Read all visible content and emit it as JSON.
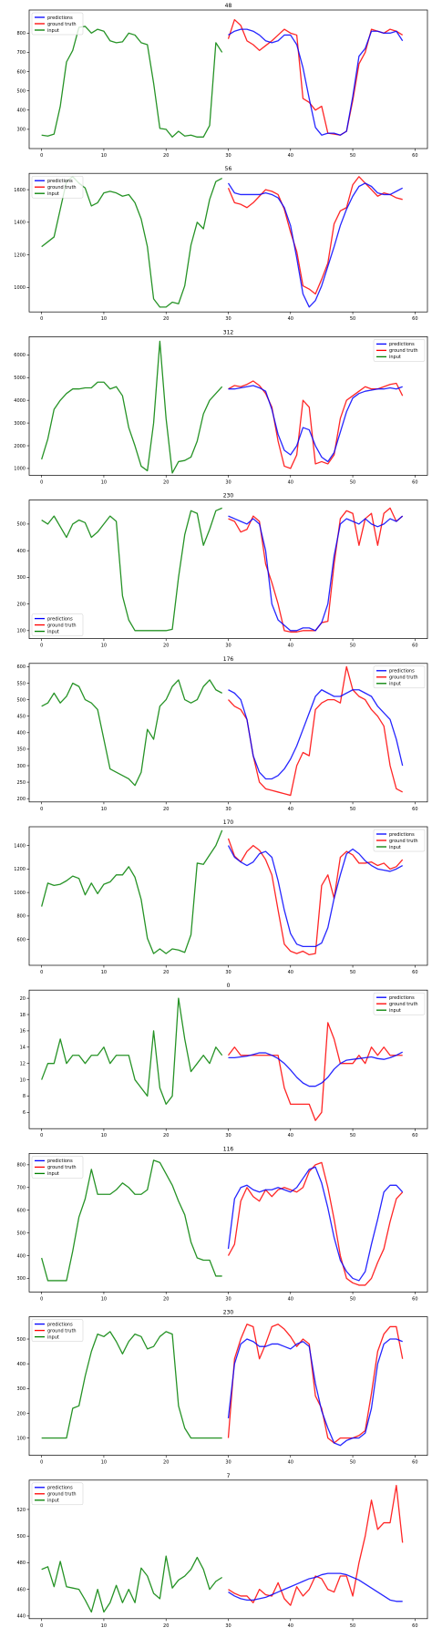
{
  "series_styles": [
    {
      "key": "predictions",
      "label": "predictions",
      "color": "#0000ff"
    },
    {
      "key": "ground_truth",
      "label": "ground truth",
      "color": "#ff0000"
    },
    {
      "key": "input",
      "label": "input",
      "color": "#008000"
    }
  ],
  "chart_data": [
    {
      "type": "line",
      "title": "48",
      "xlim": [
        -2,
        62
      ],
      "ylim": [
        200,
        920
      ],
      "xticks": [
        0,
        10,
        20,
        30,
        40,
        50,
        60
      ],
      "yticks": [
        300,
        400,
        500,
        600,
        700,
        800
      ],
      "legend": "top-left",
      "input": [
        270,
        265,
        275,
        420,
        650,
        710,
        830,
        835,
        800,
        820,
        810,
        760,
        750,
        755,
        800,
        790,
        750,
        740,
        540,
        305,
        300,
        260,
        290,
        265,
        270,
        260,
        260,
        320,
        750,
        700
      ],
      "ground_truth": [
        770,
        870,
        840,
        760,
        740,
        710,
        735,
        760,
        790,
        820,
        800,
        790,
        460,
        440,
        400,
        420,
        280,
        275,
        270,
        290,
        450,
        640,
        700,
        820,
        810,
        800,
        820,
        810,
        790
      ],
      "predictions": [
        790,
        810,
        820,
        820,
        810,
        790,
        760,
        750,
        760,
        790,
        790,
        740,
        620,
        460,
        310,
        270,
        280,
        280,
        270,
        290,
        470,
        680,
        720,
        810,
        810,
        800,
        800,
        810,
        760
      ]
    },
    {
      "type": "line",
      "title": "56",
      "xlim": [
        -2,
        62
      ],
      "ylim": [
        850,
        1700
      ],
      "xticks": [
        0,
        10,
        20,
        30,
        40,
        50,
        60
      ],
      "yticks": [
        1000,
        1200,
        1400,
        1600
      ],
      "legend": "top-left",
      "input": [
        1250,
        1280,
        1310,
        1480,
        1650,
        1680,
        1640,
        1610,
        1500,
        1520,
        1580,
        1590,
        1580,
        1560,
        1570,
        1520,
        1420,
        1250,
        930,
        880,
        880,
        910,
        900,
        1010,
        1260,
        1400,
        1360,
        1540,
        1650,
        1670
      ],
      "ground_truth": [
        1610,
        1520,
        1510,
        1490,
        1520,
        1560,
        1600,
        1590,
        1570,
        1480,
        1340,
        1220,
        1010,
        990,
        960,
        1050,
        1150,
        1390,
        1470,
        1490,
        1630,
        1680,
        1640,
        1600,
        1560,
        1580,
        1570,
        1550,
        1540
      ],
      "predictions": [
        1640,
        1580,
        1570,
        1570,
        1570,
        1570,
        1580,
        1570,
        1550,
        1490,
        1380,
        1180,
        960,
        880,
        920,
        1010,
        1130,
        1250,
        1380,
        1480,
        1560,
        1620,
        1640,
        1620,
        1580,
        1570,
        1570,
        1590,
        1610
      ]
    },
    {
      "type": "line",
      "title": "312",
      "xlim": [
        -2,
        62
      ],
      "ylim": [
        700,
        6800
      ],
      "xticks": [
        0,
        10,
        20,
        30,
        40,
        50,
        60
      ],
      "yticks": [
        1000,
        2000,
        3000,
        4000,
        5000,
        6000
      ],
      "legend": "top-right",
      "input": [
        1400,
        2300,
        3600,
        4000,
        4300,
        4500,
        4500,
        4550,
        4550,
        4800,
        4800,
        4500,
        4600,
        4200,
        2800,
        2000,
        1100,
        900,
        3000,
        6600,
        3200,
        800,
        1300,
        1350,
        1500,
        2200,
        3400,
        4000,
        4300,
        4600
      ],
      "ground_truth": [
        4500,
        4650,
        4600,
        4700,
        4850,
        4650,
        4300,
        3700,
        2200,
        1100,
        1000,
        1600,
        4000,
        3700,
        1200,
        1300,
        1200,
        1600,
        3200,
        4000,
        4200,
        4400,
        4600,
        4500,
        4500,
        4600,
        4700,
        4750,
        4200
      ],
      "predictions": [
        4500,
        4500,
        4550,
        4600,
        4650,
        4550,
        4400,
        3600,
        2500,
        1800,
        1600,
        2000,
        2800,
        2700,
        2000,
        1500,
        1300,
        1700,
        2600,
        3500,
        4100,
        4300,
        4400,
        4450,
        4500,
        4500,
        4550,
        4500,
        4600
      ]
    },
    {
      "type": "line",
      "title": "230",
      "xlim": [
        -2,
        62
      ],
      "ylim": [
        70,
        590
      ],
      "xticks": [
        0,
        10,
        20,
        30,
        40,
        50,
        60
      ],
      "yticks": [
        100,
        200,
        300,
        400,
        500
      ],
      "legend": "bottom-left",
      "input": [
        515,
        500,
        530,
        490,
        450,
        500,
        515,
        505,
        450,
        470,
        500,
        530,
        510,
        230,
        140,
        100,
        100,
        100,
        100,
        100,
        100,
        105,
        300,
        460,
        550,
        540,
        420,
        480,
        550,
        560
      ],
      "ground_truth": [
        520,
        510,
        470,
        480,
        530,
        510,
        350,
        280,
        200,
        100,
        95,
        95,
        100,
        100,
        100,
        130,
        135,
        350,
        520,
        550,
        540,
        420,
        520,
        540,
        420,
        540,
        560,
        510,
        530
      ],
      "predictions": [
        530,
        520,
        510,
        500,
        520,
        500,
        400,
        200,
        140,
        120,
        100,
        100,
        110,
        110,
        100,
        130,
        200,
        380,
        500,
        520,
        510,
        500,
        520,
        500,
        490,
        500,
        520,
        510,
        530
      ]
    },
    {
      "type": "line",
      "title": "176",
      "xlim": [
        -2,
        62
      ],
      "ylim": [
        190,
        610
      ],
      "xticks": [
        0,
        10,
        20,
        30,
        40,
        50,
        60
      ],
      "yticks": [
        200,
        250,
        300,
        350,
        400,
        450,
        500,
        550,
        600
      ],
      "legend": "top-right",
      "input": [
        480,
        490,
        520,
        490,
        510,
        550,
        540,
        500,
        490,
        470,
        380,
        290,
        280,
        270,
        260,
        240,
        280,
        410,
        380,
        480,
        500,
        540,
        560,
        500,
        490,
        500,
        540,
        560,
        530,
        520
      ],
      "ground_truth": [
        500,
        480,
        470,
        440,
        330,
        250,
        230,
        225,
        220,
        215,
        210,
        300,
        340,
        330,
        470,
        490,
        500,
        500,
        490,
        600,
        530,
        510,
        500,
        470,
        450,
        420,
        300,
        230,
        220
      ],
      "predictions": [
        530,
        520,
        500,
        440,
        330,
        280,
        260,
        260,
        270,
        290,
        320,
        360,
        410,
        460,
        510,
        530,
        520,
        510,
        510,
        520,
        530,
        530,
        520,
        510,
        480,
        460,
        440,
        380,
        300
      ]
    },
    {
      "type": "line",
      "title": "170",
      "xlim": [
        -2,
        62
      ],
      "ylim": [
        380,
        1560
      ],
      "xticks": [
        0,
        10,
        20,
        30,
        40,
        50,
        60
      ],
      "yticks": [
        600,
        800,
        1000,
        1200,
        1400
      ],
      "legend": "top-right",
      "input": [
        880,
        1080,
        1060,
        1070,
        1100,
        1140,
        1120,
        980,
        1080,
        990,
        1070,
        1090,
        1150,
        1150,
        1220,
        1130,
        940,
        610,
        480,
        520,
        480,
        520,
        510,
        490,
        640,
        1250,
        1240,
        1320,
        1400,
        1530
      ],
      "ground_truth": [
        1460,
        1310,
        1260,
        1350,
        1400,
        1360,
        1280,
        1150,
        850,
        560,
        500,
        480,
        500,
        470,
        480,
        1060,
        1150,
        950,
        1300,
        1350,
        1320,
        1250,
        1250,
        1260,
        1230,
        1250,
        1200,
        1220,
        1280
      ],
      "predictions": [
        1400,
        1300,
        1260,
        1230,
        1260,
        1330,
        1350,
        1300,
        1100,
        850,
        650,
        560,
        540,
        540,
        540,
        570,
        700,
        950,
        1150,
        1330,
        1370,
        1330,
        1270,
        1230,
        1200,
        1190,
        1180,
        1200,
        1230
      ]
    },
    {
      "type": "line",
      "title": "0",
      "xlim": [
        -2,
        62
      ],
      "ylim": [
        4,
        21
      ],
      "xticks": [
        0,
        10,
        20,
        30,
        40,
        50,
        60
      ],
      "yticks": [
        6,
        8,
        10,
        12,
        14,
        16,
        18,
        20
      ],
      "legend": "top-right",
      "input": [
        10,
        12,
        12,
        15,
        12,
        13,
        13,
        12,
        13,
        13,
        14,
        12,
        13,
        13,
        13,
        10,
        9,
        8,
        16,
        9,
        7,
        8,
        20,
        15,
        11,
        12,
        13,
        12,
        14,
        13
      ],
      "ground_truth": [
        13,
        14,
        13,
        13,
        13,
        13,
        13,
        13,
        13,
        9,
        7,
        7,
        7,
        7,
        5,
        6,
        17,
        15,
        12,
        12,
        12,
        13,
        12,
        14,
        13,
        14,
        13,
        13,
        13
      ],
      "predictions": [
        12.7,
        12.7,
        12.8,
        12.9,
        13.1,
        13.3,
        13.3,
        13.0,
        12.6,
        12.0,
        11.2,
        10.3,
        9.6,
        9.2,
        9.2,
        9.6,
        10.3,
        11.3,
        12.0,
        12.4,
        12.5,
        12.6,
        12.7,
        12.8,
        12.6,
        12.5,
        12.7,
        13.0,
        13.4
      ]
    },
    {
      "type": "line",
      "title": "116",
      "xlim": [
        -2,
        62
      ],
      "ylim": [
        240,
        850
      ],
      "xticks": [
        0,
        10,
        20,
        30,
        40,
        50,
        60
      ],
      "yticks": [
        300,
        400,
        500,
        600,
        700,
        800
      ],
      "legend": "top-left",
      "input": [
        390,
        290,
        290,
        290,
        290,
        420,
        570,
        650,
        780,
        670,
        670,
        670,
        690,
        720,
        700,
        670,
        670,
        690,
        820,
        810,
        760,
        710,
        640,
        580,
        460,
        390,
        380,
        380,
        310,
        310
      ],
      "ground_truth": [
        400,
        450,
        640,
        700,
        660,
        640,
        690,
        660,
        690,
        700,
        690,
        680,
        700,
        770,
        800,
        810,
        700,
        560,
        400,
        300,
        280,
        270,
        270,
        300,
        370,
        430,
        550,
        650,
        680
      ],
      "predictions": [
        430,
        650,
        700,
        710,
        690,
        680,
        690,
        690,
        700,
        690,
        680,
        700,
        740,
        780,
        790,
        720,
        610,
        480,
        380,
        330,
        300,
        290,
        330,
        450,
        560,
        680,
        710,
        710,
        680
      ]
    },
    {
      "type": "line",
      "title": "230",
      "xlim": [
        -2,
        62
      ],
      "ylim": [
        30,
        590
      ],
      "xticks": [
        0,
        10,
        20,
        30,
        40,
        50,
        60
      ],
      "yticks": [
        100,
        200,
        300,
        400,
        500
      ],
      "legend": "top-left",
      "input": [
        100,
        100,
        100,
        100,
        100,
        220,
        230,
        350,
        450,
        520,
        510,
        530,
        490,
        440,
        490,
        520,
        510,
        460,
        470,
        510,
        530,
        520,
        230,
        140,
        100,
        100,
        100,
        100,
        100,
        100
      ],
      "ground_truth": [
        100,
        420,
        500,
        560,
        550,
        420,
        480,
        550,
        560,
        540,
        510,
        470,
        500,
        480,
        270,
        220,
        100,
        80,
        100,
        100,
        100,
        110,
        130,
        280,
        450,
        520,
        550,
        550,
        420
      ],
      "predictions": [
        180,
        400,
        480,
        500,
        490,
        470,
        470,
        480,
        480,
        470,
        460,
        480,
        490,
        470,
        320,
        210,
        140,
        80,
        70,
        90,
        100,
        100,
        120,
        220,
        400,
        480,
        500,
        500,
        490
      ]
    },
    {
      "type": "line",
      "title": "7",
      "xlim": [
        -2,
        62
      ],
      "ylim": [
        438,
        542
      ],
      "xticks": [
        0,
        10,
        20,
        30,
        40,
        50,
        60
      ],
      "yticks": [
        440,
        460,
        480,
        500,
        520
      ],
      "legend": "top-left",
      "input": [
        475,
        477,
        462,
        481,
        462,
        461,
        460,
        452,
        443,
        460,
        443,
        450,
        463,
        450,
        460,
        450,
        476,
        470,
        457,
        453,
        485,
        461,
        467,
        470,
        475,
        484,
        475,
        460,
        466,
        469
      ],
      "ground_truth": [
        460,
        457,
        455,
        455,
        450,
        460,
        456,
        455,
        465,
        453,
        448,
        462,
        455,
        460,
        470,
        468,
        460,
        458,
        470,
        470,
        455,
        480,
        500,
        527,
        505,
        510,
        510,
        538,
        495
      ],
      "predictions": [
        458,
        455,
        453,
        452,
        452,
        453,
        454,
        456,
        458,
        460,
        462,
        464,
        466,
        468,
        469,
        471,
        472,
        472,
        472,
        471,
        469,
        467,
        464,
        461,
        458,
        455,
        452,
        451,
        451
      ]
    }
  ]
}
